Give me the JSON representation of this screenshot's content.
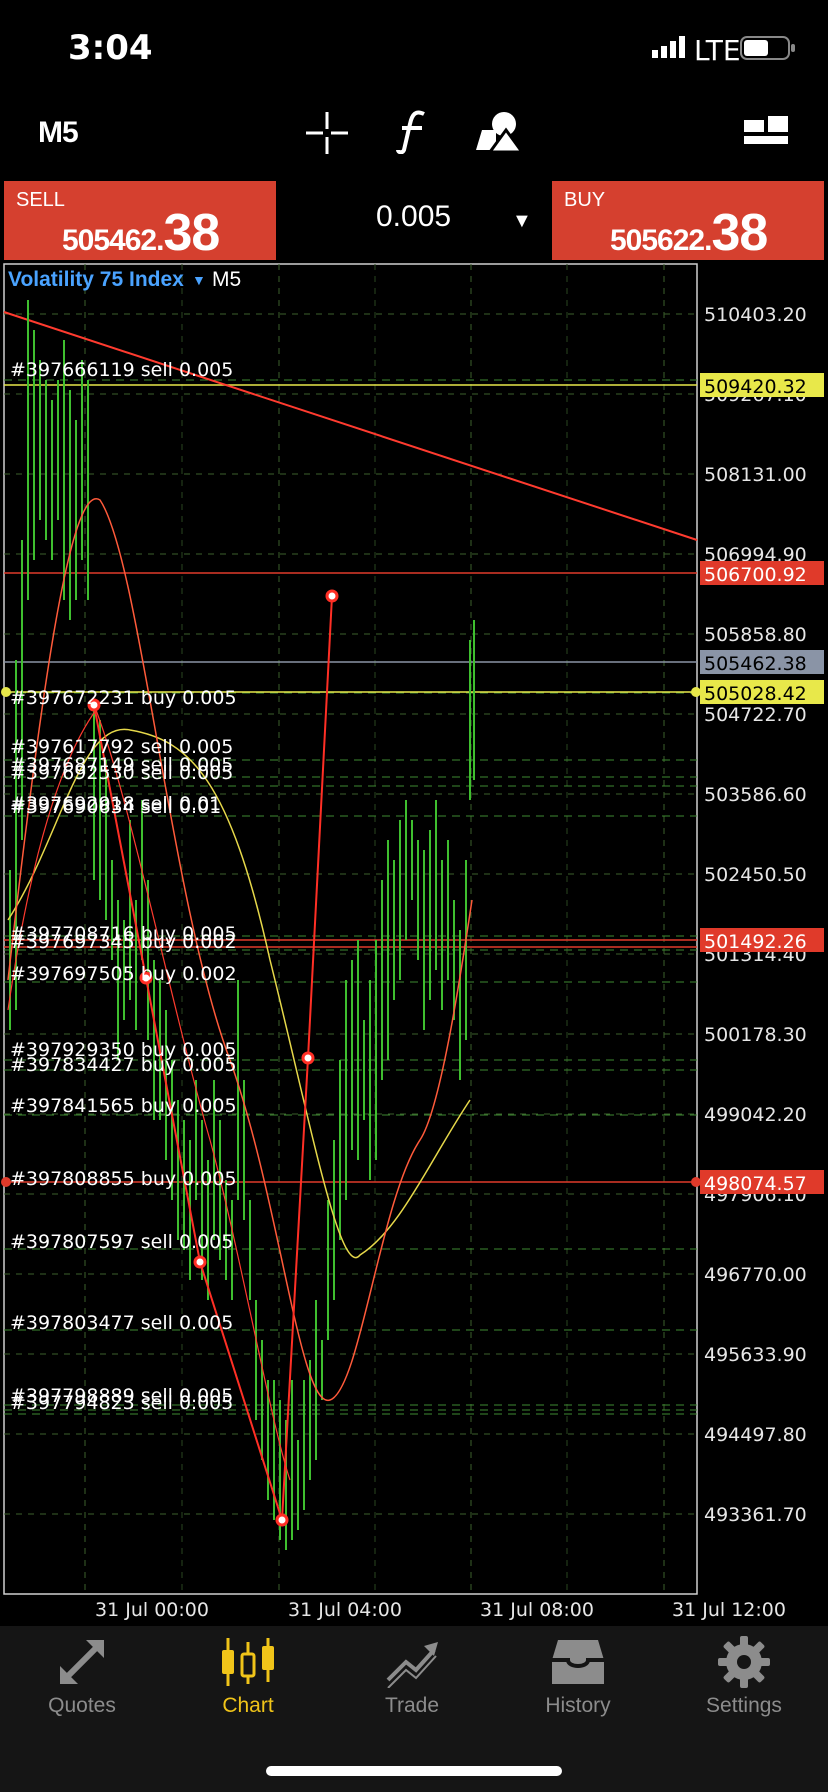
{
  "status_bar": {
    "time": "3:04",
    "network": "LTE"
  },
  "toolbar": {
    "timeframe": "M5",
    "icons": [
      "crosshair-icon",
      "function-icon",
      "objects-icon",
      "window-layout-icon"
    ]
  },
  "trade": {
    "sell_label": "SELL",
    "sell_price_main": "505462.",
    "sell_price_big": "38",
    "buy_label": "BUY",
    "buy_price_main": "505622.",
    "buy_price_big": "38",
    "lot": "0.005"
  },
  "chart": {
    "symbol": "Volatility 75 Index",
    "timeframe": "M5",
    "price_ticks": [
      "510403.20",
      "509267.10",
      "508131.00",
      "506994.90",
      "505858.80",
      "504722.70",
      "503586.60",
      "502450.50",
      "501314.40",
      "500178.30",
      "499042.20",
      "497906.10",
      "496770.00",
      "495633.90",
      "494497.80",
      "493361.70"
    ],
    "time_ticks": [
      "31 Jul 00:00",
      "31 Jul 04:00",
      "31 Jul 08:00",
      "31 Jul 12:00"
    ],
    "highlight_prices": [
      {
        "value": "509420.32",
        "bg": "#e8e84a",
        "fg": "#000000"
      },
      {
        "value": "506700.92",
        "bg": "#e03a2a",
        "fg": "#ffffff"
      },
      {
        "value": "505462.38",
        "bg": "#8a94a6",
        "fg": "#000000"
      },
      {
        "value": "505028.42",
        "bg": "#e8e84a",
        "fg": "#000000"
      },
      {
        "value": "501492.26",
        "bg": "#e03a2a",
        "fg": "#ffffff"
      },
      {
        "value": "498074.57",
        "bg": "#e03a2a",
        "fg": "#ffffff"
      }
    ],
    "order_labels": [
      "#397666119 sell 0.005",
      "#397672231 buy 0.005",
      "#397617792 sell 0.005",
      "#397687149 sell 0.005",
      "#397692530 sell 0.005",
      "#397692918 sell 0.01",
      "#397690634 sell 0.01",
      "#397708716 buy 0.005",
      "#397697345 buy 0.002",
      "#397697505 buy 0.002",
      "#397929350 buy 0.005",
      "#397834427 buy 0.005",
      "#397841565 buy 0.005",
      "#397808855 buy 0.005",
      "#397807597 sell 0.005",
      "#397803477 sell 0.005",
      "#397798889 sell 0.005",
      "#397794823 sell 0.005"
    ]
  },
  "tabs": [
    {
      "label": "Quotes",
      "icon": "quotes-icon",
      "active": false
    },
    {
      "label": "Chart",
      "icon": "chart-icon",
      "active": true
    },
    {
      "label": "Trade",
      "icon": "trade-icon",
      "active": false
    },
    {
      "label": "History",
      "icon": "history-icon",
      "active": false
    },
    {
      "label": "Settings",
      "icon": "settings-icon",
      "active": false
    }
  ],
  "colors": {
    "accent": "#f0c419",
    "sell_buy_bg": "#d5402f",
    "symbol": "#4aa3ff"
  }
}
